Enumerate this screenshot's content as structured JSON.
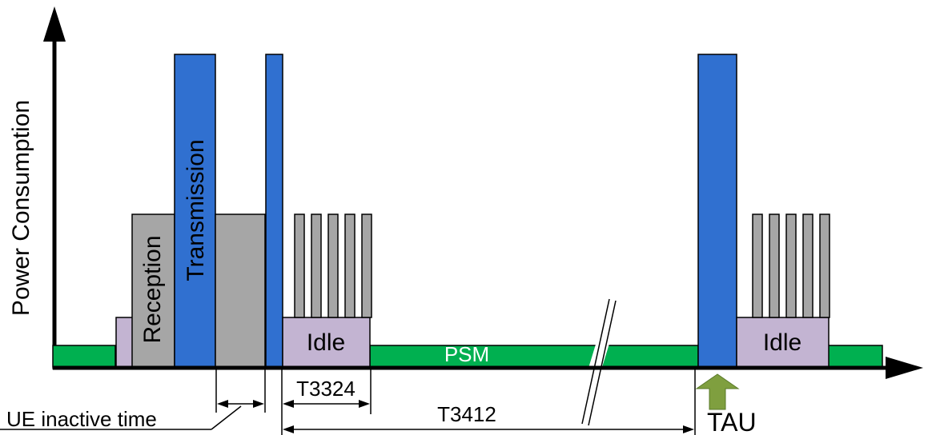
{
  "axis": {
    "ylabel": "Power Consumption"
  },
  "labels": {
    "reception": "Reception",
    "transmission": "Transmission",
    "idle_1": "Idle",
    "idle_2": "Idle",
    "psm": "PSM",
    "tau": "TAU"
  },
  "timers": {
    "t3324": "T3324",
    "t3412": "T3412",
    "ue_inactive": "UE inactive time"
  },
  "colors": {
    "psm_green": "#00b050",
    "transmission_blue": "#3070d0",
    "reception_gray": "#a6a6a6",
    "idle_purple": "#c3b4d2",
    "tau_arrow": "#7f9f3f",
    "axis": "#000000"
  }
}
